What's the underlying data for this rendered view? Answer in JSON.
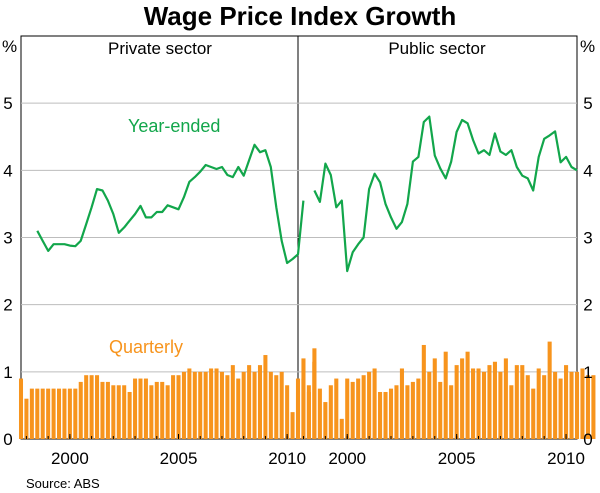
{
  "chart_data": {
    "type": "bar+line",
    "title": "Wage Price Index Growth",
    "y_unit": "%",
    "ylim": [
      0,
      6
    ],
    "yticks": [
      "0",
      "1",
      "2",
      "3",
      "4",
      "5"
    ],
    "source": "Source: ABS",
    "colors": {
      "year_ended": "#12a64b",
      "quarterly": "#f7941d",
      "grid": "#bdbdbd"
    },
    "series_labels": {
      "year_ended": "Year-ended",
      "quarterly": "Quarterly"
    },
    "panels": [
      {
        "title": "Private sector",
        "xlim": [
          1997.75,
          2010.5
        ],
        "xticks": [
          "2000",
          "2005",
          "2010"
        ],
        "xtick_values": [
          2000,
          2005,
          2010
        ],
        "quarter_start": 1997.75,
        "quarterly": [
          0.9,
          0.6,
          0.75,
          0.75,
          0.75,
          0.75,
          0.75,
          0.75,
          0.75,
          0.75,
          0.75,
          0.85,
          0.95,
          0.95,
          0.95,
          0.85,
          0.85,
          0.8,
          0.8,
          0.8,
          0.7,
          0.9,
          0.9,
          0.9,
          0.8,
          0.85,
          0.85,
          0.8,
          0.95,
          0.95,
          1.0,
          1.05,
          1.0,
          1.0,
          1.0,
          1.05,
          1.05,
          1.0,
          0.95,
          1.1,
          0.9,
          1.0,
          1.1,
          1.0,
          1.1,
          1.25,
          1.0,
          0.95,
          1.0,
          0.8,
          0.4,
          0.7,
          0.9,
          0.8,
          1.15
        ],
        "year_ended_start": 1998.5,
        "year_ended": [
          3.1,
          2.95,
          2.8,
          2.9,
          2.9,
          2.9,
          2.88,
          2.87,
          2.95,
          3.2,
          3.45,
          3.72,
          3.7,
          3.55,
          3.35,
          3.07,
          3.15,
          3.25,
          3.35,
          3.47,
          3.3,
          3.3,
          3.38,
          3.38,
          3.48,
          3.45,
          3.42,
          3.6,
          3.83,
          3.9,
          3.98,
          4.08,
          4.05,
          4.02,
          4.05,
          3.93,
          3.9,
          4.05,
          3.92,
          4.15,
          4.38,
          4.27,
          4.3,
          4.05,
          3.45,
          2.95,
          2.62,
          2.68,
          2.75,
          3.55
        ]
      },
      {
        "title": "Public sector",
        "xlim": [
          1997.75,
          2010.5
        ],
        "xticks": [
          "2000",
          "2005",
          "2010"
        ],
        "xtick_values": [
          2000,
          2005,
          2010
        ],
        "quarter_start": 1997.75,
        "quarterly": [
          0.9,
          1.2,
          0.7,
          1.35,
          0.75,
          0.55,
          0.8,
          0.9,
          0.3,
          0.9,
          0.85,
          0.9,
          0.95,
          1.0,
          1.05,
          0.7,
          0.7,
          0.75,
          0.8,
          1.05,
          0.8,
          0.85,
          0.9,
          1.4,
          1.0,
          1.2,
          0.85,
          1.3,
          0.8,
          1.1,
          1.2,
          1.3,
          1.05,
          1.05,
          1.0,
          1.1,
          1.15,
          1.0,
          1.2,
          0.8,
          1.1,
          1.1,
          0.95,
          0.75,
          1.05,
          0.95,
          1.45,
          1.0,
          0.9,
          1.1,
          1.0,
          1.0,
          1.05,
          0.95,
          0.95
        ],
        "year_ended_start": 1998.5,
        "year_ended": [
          3.7,
          3.53,
          4.1,
          3.93,
          3.45,
          3.55,
          2.5,
          2.78,
          2.9,
          3.0,
          3.72,
          3.95,
          3.82,
          3.5,
          3.3,
          3.13,
          3.23,
          3.5,
          4.13,
          4.2,
          4.72,
          4.8,
          4.22,
          4.03,
          3.88,
          4.13,
          4.57,
          4.75,
          4.7,
          4.45,
          4.25,
          4.3,
          4.23,
          4.55,
          4.28,
          4.23,
          4.3,
          4.05,
          3.92,
          3.88,
          3.7,
          4.2,
          4.47,
          4.52,
          4.58,
          4.12,
          4.2,
          4.05,
          4.0
        ]
      }
    ]
  }
}
